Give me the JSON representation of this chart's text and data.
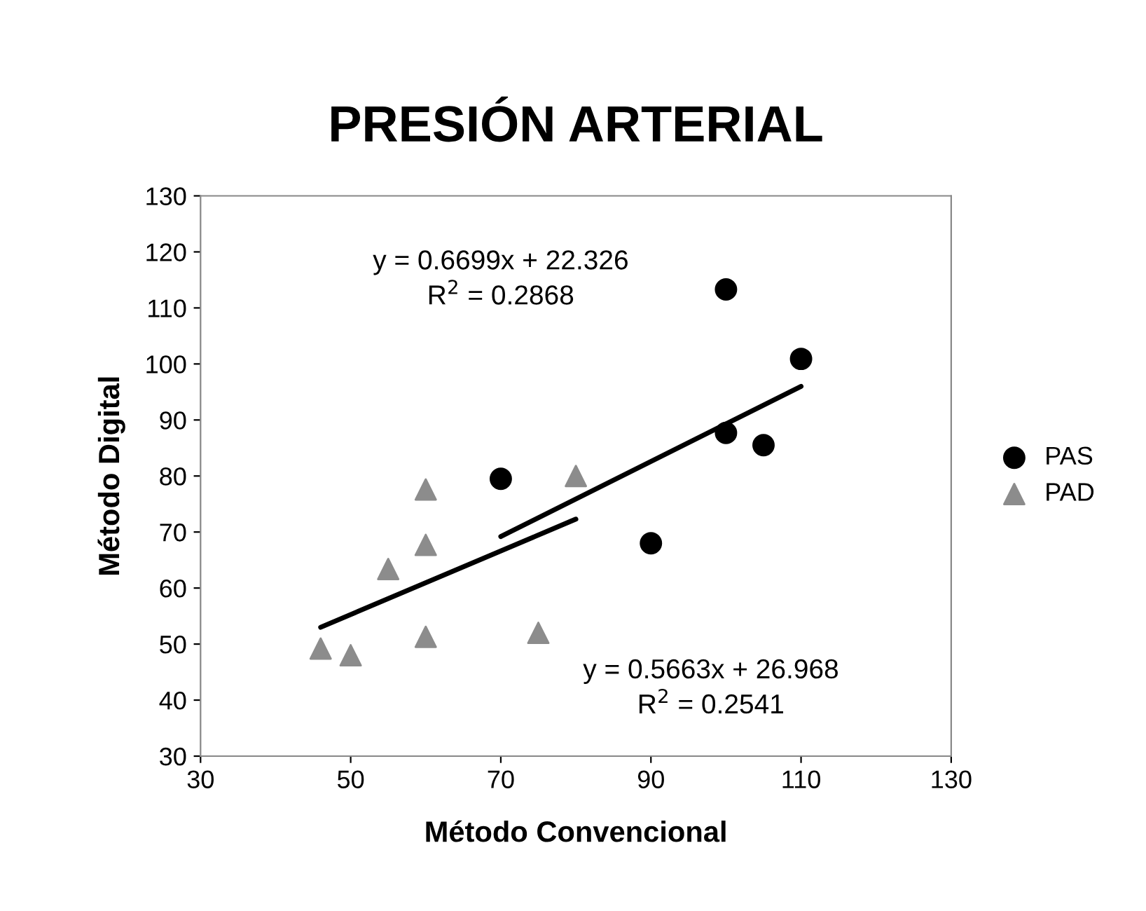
{
  "chart_data": {
    "type": "scatter",
    "title": "PRESIÓN ARTERIAL",
    "xlabel": "Método Convencional",
    "ylabel": "Método Digital",
    "xlim": [
      30,
      130
    ],
    "xticks": [
      30,
      50,
      70,
      90,
      110,
      130
    ],
    "ylim": [
      30,
      130
    ],
    "yticks": [
      30,
      40,
      50,
      60,
      70,
      80,
      90,
      100,
      110,
      120,
      130
    ],
    "grid": false,
    "legend": "right",
    "series": [
      {
        "name": "PAS",
        "color": "#000000",
        "marker": "circle",
        "x": [
          70,
          90,
          100,
          100,
          105,
          110
        ],
        "values": [
          79.5,
          68,
          113.3,
          87.7,
          85.5,
          100.9
        ]
      },
      {
        "name": "PAD",
        "color": "#8c8c8c",
        "marker": "triangle",
        "x": [
          46,
          50,
          55,
          60,
          60,
          60,
          75,
          80
        ],
        "values": [
          49.2,
          48,
          63.4,
          77.6,
          67.7,
          51.3,
          52,
          80
        ]
      },
      {
        "type": "line",
        "color": "#000000",
        "x": [
          70,
          110
        ],
        "values": [
          69.2,
          96.0
        ]
      },
      {
        "type": "line",
        "color": "#000000",
        "x": [
          46,
          80
        ],
        "values": [
          53.0,
          72.3
        ]
      }
    ],
    "annotations": [
      "y = 0.6699x + 22.326\nR$^{2}$ = 0.2868",
      "y = 0.5663x + 26.968\nR$^{2}$ = 0.2541"
    ]
  }
}
